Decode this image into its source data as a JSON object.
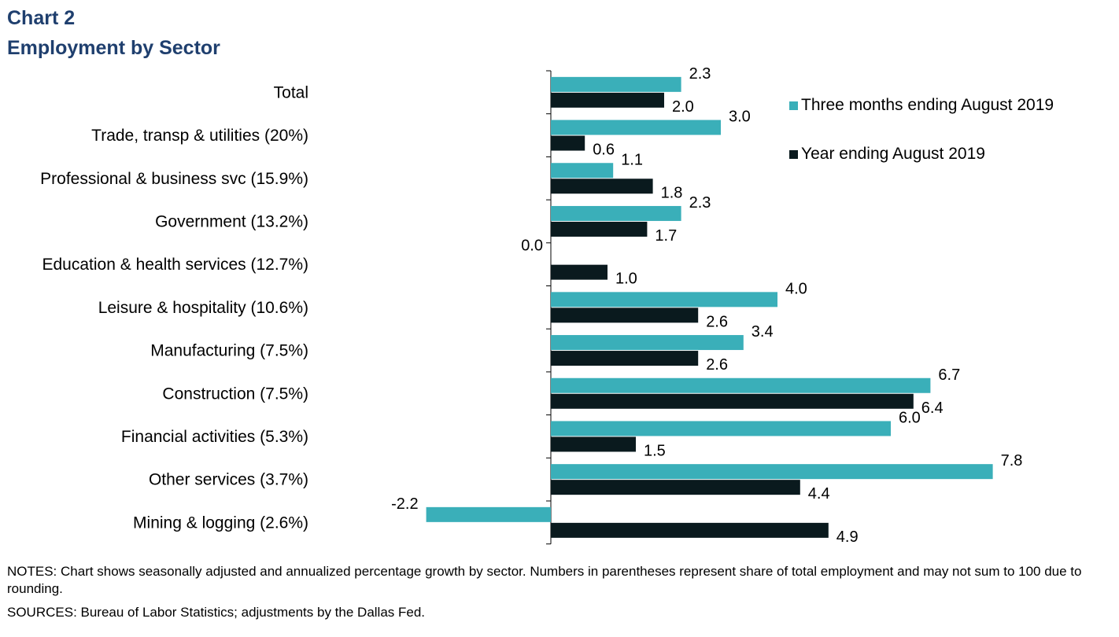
{
  "title": "Chart 2",
  "subtitle": "Employment by Sector",
  "notes": "NOTES: Chart shows seasonally adjusted and annualized  percentage growth by sector. Numbers in parentheses represent share of total employment and may not sum to 100 due to rounding.",
  "sources": "SOURCES: Bureau of Labor Statistics; adjustments by the Dallas Fed.",
  "chart_data": {
    "type": "bar",
    "orientation": "horizontal",
    "categories": [
      "Total",
      "Trade, transp & utilities (20%)",
      "Professional & business svc (15.9%)",
      "Government (13.2%)",
      "Education & health services (12.7%)",
      "Leisure & hospitality (10.6%)",
      "Manufacturing (7.5%)",
      "Construction (7.5%)",
      "Financial activities (5.3%)",
      "Other services (3.7%)",
      "Mining & logging (2.6%)"
    ],
    "series": [
      {
        "name": "Three months ending  August 2019",
        "color": "#3aafb9",
        "values": [
          2.3,
          3.0,
          1.1,
          2.3,
          0.0,
          4.0,
          3.4,
          6.7,
          6.0,
          7.8,
          -2.2
        ]
      },
      {
        "name": "Year ending August 2019",
        "color": "#0a1a1e",
        "values": [
          2.0,
          0.6,
          1.8,
          1.7,
          1.0,
          2.6,
          2.6,
          6.4,
          1.5,
          4.4,
          4.9
        ]
      }
    ],
    "xlim": [
      -2.2,
      7.8
    ],
    "legend_position": "top-right",
    "grid": false,
    "data_labels": true,
    "value_format": "one-decimal"
  }
}
